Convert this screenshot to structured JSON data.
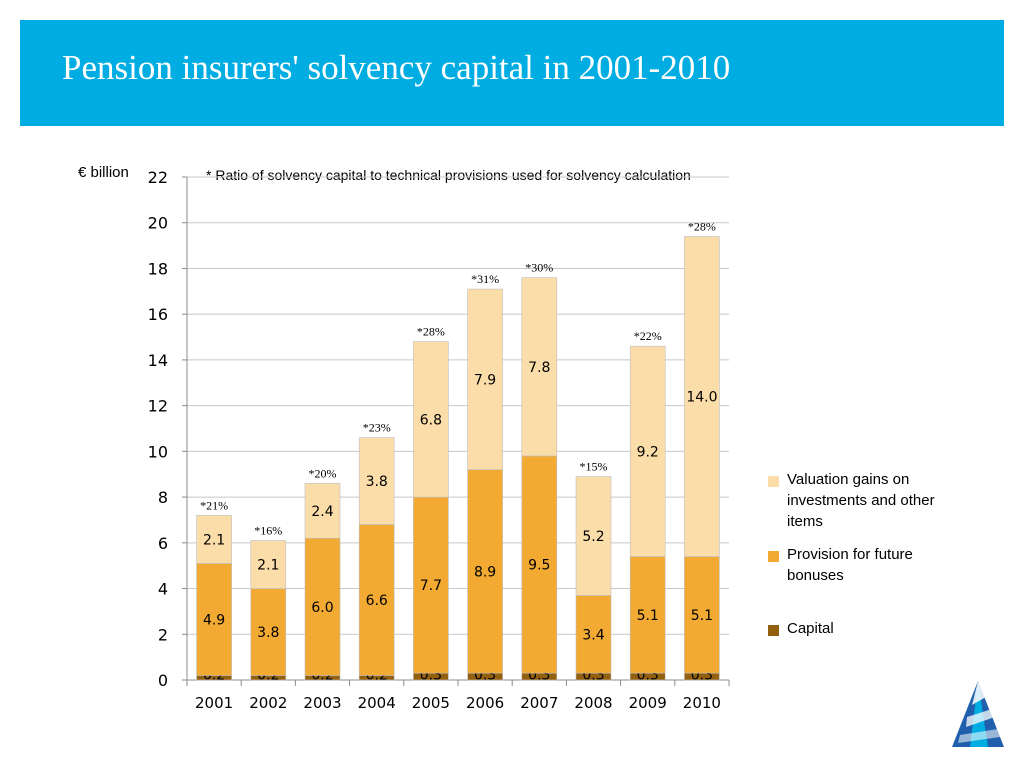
{
  "header": {
    "title": "Pension insurers' solvency capital in 2001-2010",
    "bg_color": "#00ADE2"
  },
  "chart_data": {
    "type": "bar",
    "stacked": true,
    "title": "Pension insurers' solvency capital in 2001-2010",
    "ylabel": "€ billion",
    "xlabel": "",
    "note": "* Ratio of solvency capital to technical provisions used for solvency calculation",
    "categories": [
      "2001",
      "2002",
      "2003",
      "2004",
      "2005",
      "2006",
      "2007",
      "2008",
      "2009",
      "2010"
    ],
    "ylim": [
      0,
      22
    ],
    "yticks": [
      0,
      2,
      4,
      6,
      8,
      10,
      12,
      14,
      16,
      18,
      20,
      22
    ],
    "grid": true,
    "legend_position": "right",
    "series": [
      {
        "name": "Capital",
        "color": "#93600F",
        "values": [
          0.2,
          0.2,
          0.2,
          0.2,
          0.3,
          0.3,
          0.3,
          0.3,
          0.3,
          0.3
        ],
        "labels": [
          "0.2",
          "0.2",
          "0.2",
          "0.2",
          "0.3",
          "0.3",
          "0.3",
          "0.3",
          "0.3",
          "0.3"
        ]
      },
      {
        "name": "Provision for future bonuses",
        "color": "#F2AA33",
        "values": [
          4.9,
          3.8,
          6.0,
          6.6,
          7.7,
          8.9,
          9.5,
          3.4,
          5.1,
          5.1
        ],
        "labels": [
          "4.9",
          "3.8",
          "6.0",
          "6.6",
          "7.7",
          "8.9",
          "9.5",
          "3.4",
          "5.1",
          "5.1"
        ]
      },
      {
        "name": "Valuation gains on investments and other items",
        "color": "#FBDDA9",
        "values": [
          2.1,
          2.1,
          2.4,
          3.8,
          6.8,
          7.9,
          7.8,
          5.2,
          9.2,
          14.0
        ],
        "labels": [
          "2.1",
          "2.1",
          "2.4",
          "3.8",
          "6.8",
          "7.9",
          "7.8",
          "5.2",
          "9.2",
          "14.0"
        ]
      }
    ],
    "ratio_labels": [
      "*21%",
      "*16%",
      "*20%",
      "*23%",
      "*28%",
      "*31%",
      "*30%",
      "*15%",
      "*22%",
      "*28%"
    ]
  },
  "legend": {
    "items": [
      {
        "label": "Valuation gains on investments and other items",
        "color": "#FBDDA9"
      },
      {
        "label": "Provision for future bonuses",
        "color": "#F2AA33"
      },
      {
        "label": "Capital",
        "color": "#93600F"
      }
    ]
  },
  "logo": {
    "name": "triangle-logo-icon",
    "colors": [
      "#1F5FAD",
      "#00ADE2",
      "#ffffff"
    ]
  }
}
